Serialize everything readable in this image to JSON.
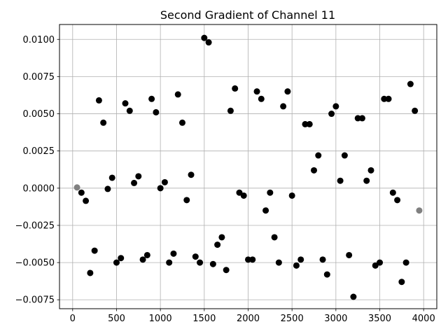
{
  "chart_data": {
    "type": "scatter",
    "title": "Second Gradient of Channel 11",
    "xlabel": "",
    "ylabel": "",
    "xlim": [
      -150,
      4150
    ],
    "ylim": [
      -0.0081,
      0.011
    ],
    "grid": true,
    "x_ticks": [
      0,
      500,
      1000,
      1500,
      2000,
      2500,
      3000,
      3500,
      4000
    ],
    "x_tick_labels": [
      "0",
      "500",
      "1000",
      "1500",
      "2000",
      "2500",
      "3000",
      "3500",
      "4000"
    ],
    "y_ticks": [
      -0.0075,
      -0.005,
      -0.0025,
      0.0,
      0.0025,
      0.005,
      0.0075,
      0.01
    ],
    "y_tick_labels": [
      "−0.0075",
      "−0.0050",
      "−0.0025",
      "0.0000",
      "0.0025",
      "0.0050",
      "0.0075",
      "0.0100"
    ],
    "series": [
      {
        "color": "#000000",
        "points": [
          [
            100,
            -0.0003
          ],
          [
            150,
            -0.00085
          ],
          [
            200,
            -0.0057
          ],
          [
            250,
            -0.0042
          ],
          [
            300,
            0.0059
          ],
          [
            350,
            0.0044
          ],
          [
            400,
            -5e-05
          ],
          [
            450,
            0.0007
          ],
          [
            500,
            -0.005
          ],
          [
            550,
            -0.0047
          ],
          [
            600,
            0.0057
          ],
          [
            650,
            0.0052
          ],
          [
            700,
            0.00035
          ],
          [
            750,
            0.0008
          ],
          [
            800,
            -0.0048
          ],
          [
            850,
            -0.0045
          ],
          [
            900,
            0.006
          ],
          [
            950,
            0.0051
          ],
          [
            1000,
            0.0
          ],
          [
            1050,
            0.0004
          ],
          [
            1100,
            -0.005
          ],
          [
            1150,
            -0.0044
          ],
          [
            1200,
            0.0063
          ],
          [
            1250,
            0.0044
          ],
          [
            1300,
            -0.0008
          ],
          [
            1350,
            0.0009
          ],
          [
            1400,
            -0.0046
          ],
          [
            1450,
            -0.005
          ],
          [
            1500,
            0.0101
          ],
          [
            1550,
            0.0098
          ],
          [
            1600,
            -0.0051
          ],
          [
            1650,
            -0.0038
          ],
          [
            1700,
            -0.0033
          ],
          [
            1750,
            -0.0055
          ],
          [
            1800,
            0.0052
          ],
          [
            1850,
            0.0067
          ],
          [
            1900,
            -0.0003
          ],
          [
            1950,
            -0.0005
          ],
          [
            2000,
            -0.0048
          ],
          [
            2050,
            -0.0048
          ],
          [
            2100,
            0.0065
          ],
          [
            2150,
            0.006
          ],
          [
            2200,
            -0.0015
          ],
          [
            2250,
            -0.0003
          ],
          [
            2300,
            -0.0033
          ],
          [
            2350,
            -0.005
          ],
          [
            2400,
            0.0055
          ],
          [
            2450,
            0.0065
          ],
          [
            2500,
            -0.0005
          ],
          [
            2550,
            -0.0052
          ],
          [
            2600,
            -0.0048
          ],
          [
            2650,
            0.0043
          ],
          [
            2700,
            0.0043
          ],
          [
            2750,
            0.0012
          ],
          [
            2800,
            0.0022
          ],
          [
            2850,
            -0.0048
          ],
          [
            2900,
            -0.0058
          ],
          [
            2950,
            0.005
          ],
          [
            3000,
            0.0055
          ],
          [
            3050,
            0.0005
          ],
          [
            3100,
            0.0022
          ],
          [
            3150,
            -0.0045
          ],
          [
            3200,
            -0.0073
          ],
          [
            3250,
            0.0047
          ],
          [
            3300,
            0.0047
          ],
          [
            3350,
            0.0005
          ],
          [
            3400,
            0.0012
          ],
          [
            3450,
            -0.0052
          ],
          [
            3500,
            -0.005
          ],
          [
            3550,
            0.006
          ],
          [
            3600,
            0.006
          ],
          [
            3650,
            -0.0003
          ],
          [
            3700,
            -0.0008
          ],
          [
            3750,
            -0.0063
          ],
          [
            3800,
            -0.005
          ],
          [
            3850,
            0.007
          ],
          [
            3900,
            0.0052
          ]
        ]
      },
      {
        "color": "#808080",
        "points": [
          [
            50,
            5e-05
          ],
          [
            3950,
            -0.0015
          ]
        ]
      }
    ]
  }
}
